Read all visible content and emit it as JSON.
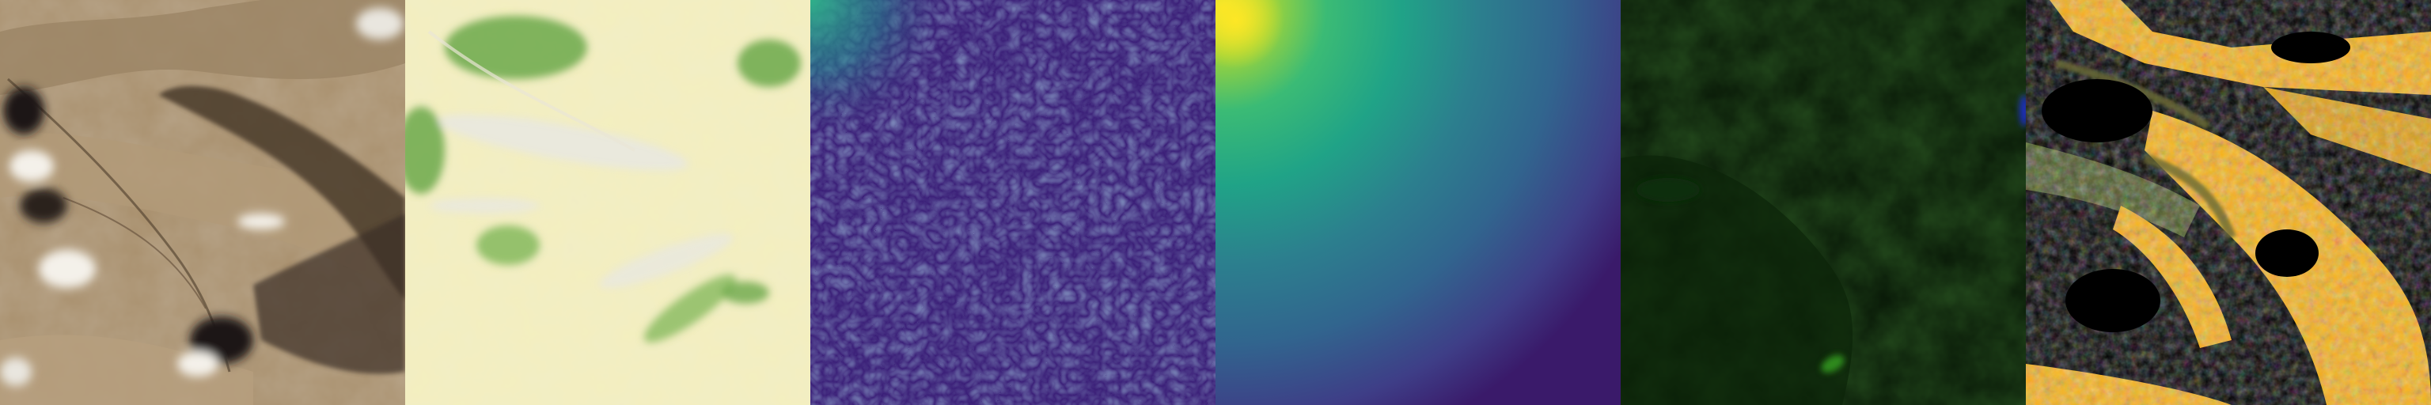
{
  "strip": {
    "panels": [
      {
        "id": "rgb",
        "name": "satellite-true-color-panel",
        "colors": {
          "base": "#a88f6c",
          "dark": "#3a2f26",
          "cloud": "#f4f1ea"
        }
      },
      {
        "id": "green-yellow",
        "name": "vegetation-index-panel",
        "colors": {
          "base": "#f4efbe",
          "green": "#6ba84a",
          "pale": "#e7e7e4"
        }
      },
      {
        "id": "viridis-noise",
        "name": "texture-heatmap-panel",
        "colors": {
          "base": "#3b1f78",
          "mid": "#40508c",
          "light": "#2fb089"
        }
      },
      {
        "id": "viridis-gradient",
        "name": "distance-gradient-panel",
        "colors": {
          "yellow": "#f7e629",
          "teal": "#20a387",
          "blue": "#31658e",
          "purple": "#3a1a6a"
        }
      },
      {
        "id": "dark-green",
        "name": "dark-green-channel-panel",
        "colors": {
          "base": "#071606",
          "accent": "#2d8a1e",
          "blue": "#1b2fbf"
        }
      },
      {
        "id": "mask",
        "name": "orange-mask-overlay-panel",
        "colors": {
          "mask": "#f8b11a",
          "dark": "#000000",
          "olive": "#4d5a2a"
        }
      }
    ]
  }
}
